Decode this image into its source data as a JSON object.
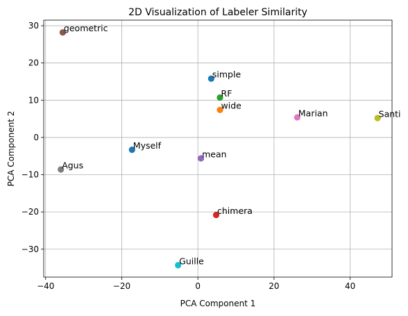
{
  "chart_data": {
    "type": "scatter",
    "title": "2D Visualization of Labeler Similarity",
    "xlabel": "PCA Component 1",
    "ylabel": "PCA Component 2",
    "xlim": [
      -40.5,
      51
    ],
    "ylim": [
      -37.5,
      31.5
    ],
    "xticks": [
      -40,
      -20,
      0,
      20,
      40
    ],
    "yticks": [
      -30,
      -20,
      -10,
      0,
      10,
      20,
      30
    ],
    "grid": true,
    "points": [
      {
        "label": "geometric",
        "x": -35.5,
        "y": 28.2,
        "color": "#8c564b"
      },
      {
        "label": "simple",
        "x": 3.5,
        "y": 15.8,
        "color": "#1f77b4"
      },
      {
        "label": "RF",
        "x": 5.8,
        "y": 10.7,
        "color": "#2ca02c"
      },
      {
        "label": "wide",
        "x": 5.8,
        "y": 7.4,
        "color": "#ff7f0e"
      },
      {
        "label": "Marian",
        "x": 26.1,
        "y": 5.4,
        "color": "#e377c2"
      },
      {
        "label": "Santi",
        "x": 47.2,
        "y": 5.2,
        "color": "#bcbd22"
      },
      {
        "label": "Myself",
        "x": -17.3,
        "y": -3.3,
        "color": "#1f77b4"
      },
      {
        "label": "mean",
        "x": 0.8,
        "y": -5.6,
        "color": "#9467bd"
      },
      {
        "label": "Agus",
        "x": -36.0,
        "y": -8.6,
        "color": "#7f7f7f"
      },
      {
        "label": "chimera",
        "x": 4.8,
        "y": -20.8,
        "color": "#d62728"
      },
      {
        "label": "Guille",
        "x": -5.2,
        "y": -34.3,
        "color": "#17becf"
      }
    ]
  }
}
